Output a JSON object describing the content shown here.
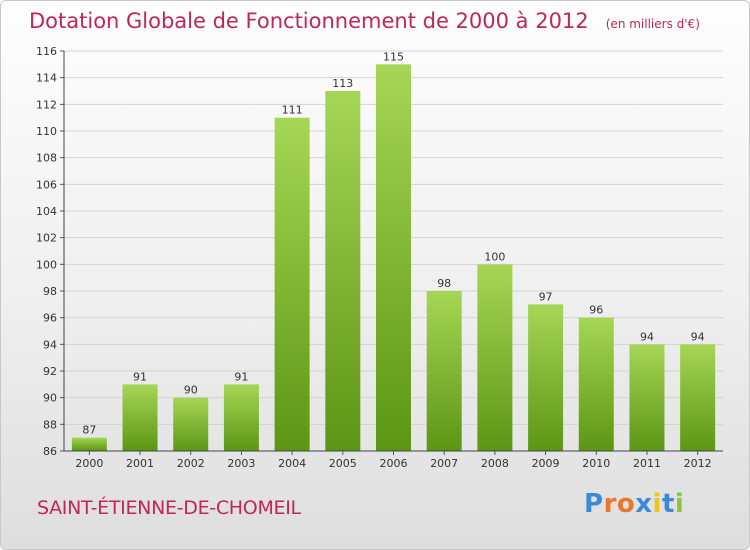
{
  "title": "Dotation Globale de Fonctionnement de 2000 à 2012",
  "unit_label": "(en milliers d'€)",
  "commune": "SAINT-ÉTIENNE-DE-CHOMEIL",
  "logo": {
    "text": "Proxiti",
    "letter_colors": [
      "#3b8ad9",
      "#e8762c",
      "#e8762c",
      "#3b8ad9",
      "#f0c419",
      "#3b8ad9",
      "#8cc63f"
    ]
  },
  "colors": {
    "title": "#c0265a",
    "bar_light": "#9ccf4a",
    "bar_dark": "#5f9a16"
  },
  "chart_data": {
    "type": "bar",
    "title": "Dotation Globale de Fonctionnement de 2000 à 2012",
    "xlabel": "",
    "ylabel": "",
    "categories": [
      "2000",
      "2001",
      "2002",
      "2003",
      "2004",
      "2005",
      "2006",
      "2007",
      "2008",
      "2009",
      "2010",
      "2011",
      "2012"
    ],
    "values": [
      87,
      91,
      90,
      91,
      111,
      113,
      115,
      98,
      100,
      97,
      96,
      94,
      94
    ],
    "ylim": [
      86,
      116
    ],
    "yticks": [
      86,
      88,
      90,
      92,
      94,
      96,
      98,
      100,
      102,
      104,
      106,
      108,
      110,
      112,
      114,
      116
    ],
    "grid": true,
    "data_labels": true
  }
}
